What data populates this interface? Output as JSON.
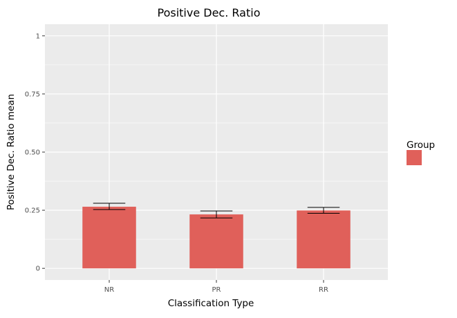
{
  "chart_data": {
    "type": "bar",
    "title": "Positive Dec. Ratio",
    "xlabel": "Classification Type",
    "ylabel": "Positive Dec. Ratio mean",
    "categories": [
      "NR",
      "PR",
      "RR"
    ],
    "series": [
      {
        "name": "",
        "values": [
          0.265,
          0.232,
          0.249
        ],
        "error_low": [
          0.253,
          0.217,
          0.237
        ],
        "error_high": [
          0.28,
          0.247,
          0.262
        ]
      }
    ],
    "ylim": [
      -0.05,
      1.05
    ],
    "yticks": [
      0,
      0.25,
      0.5,
      0.75,
      1
    ],
    "ytick_labels": [
      "0",
      "0.25",
      "0.50",
      "0.75",
      "1"
    ],
    "grid": true,
    "legend": {
      "title": "Group",
      "placement": "right"
    },
    "colors": {
      "bar": "#e0605a",
      "panel": "#ebebeb",
      "grid": "#ffffff"
    }
  }
}
